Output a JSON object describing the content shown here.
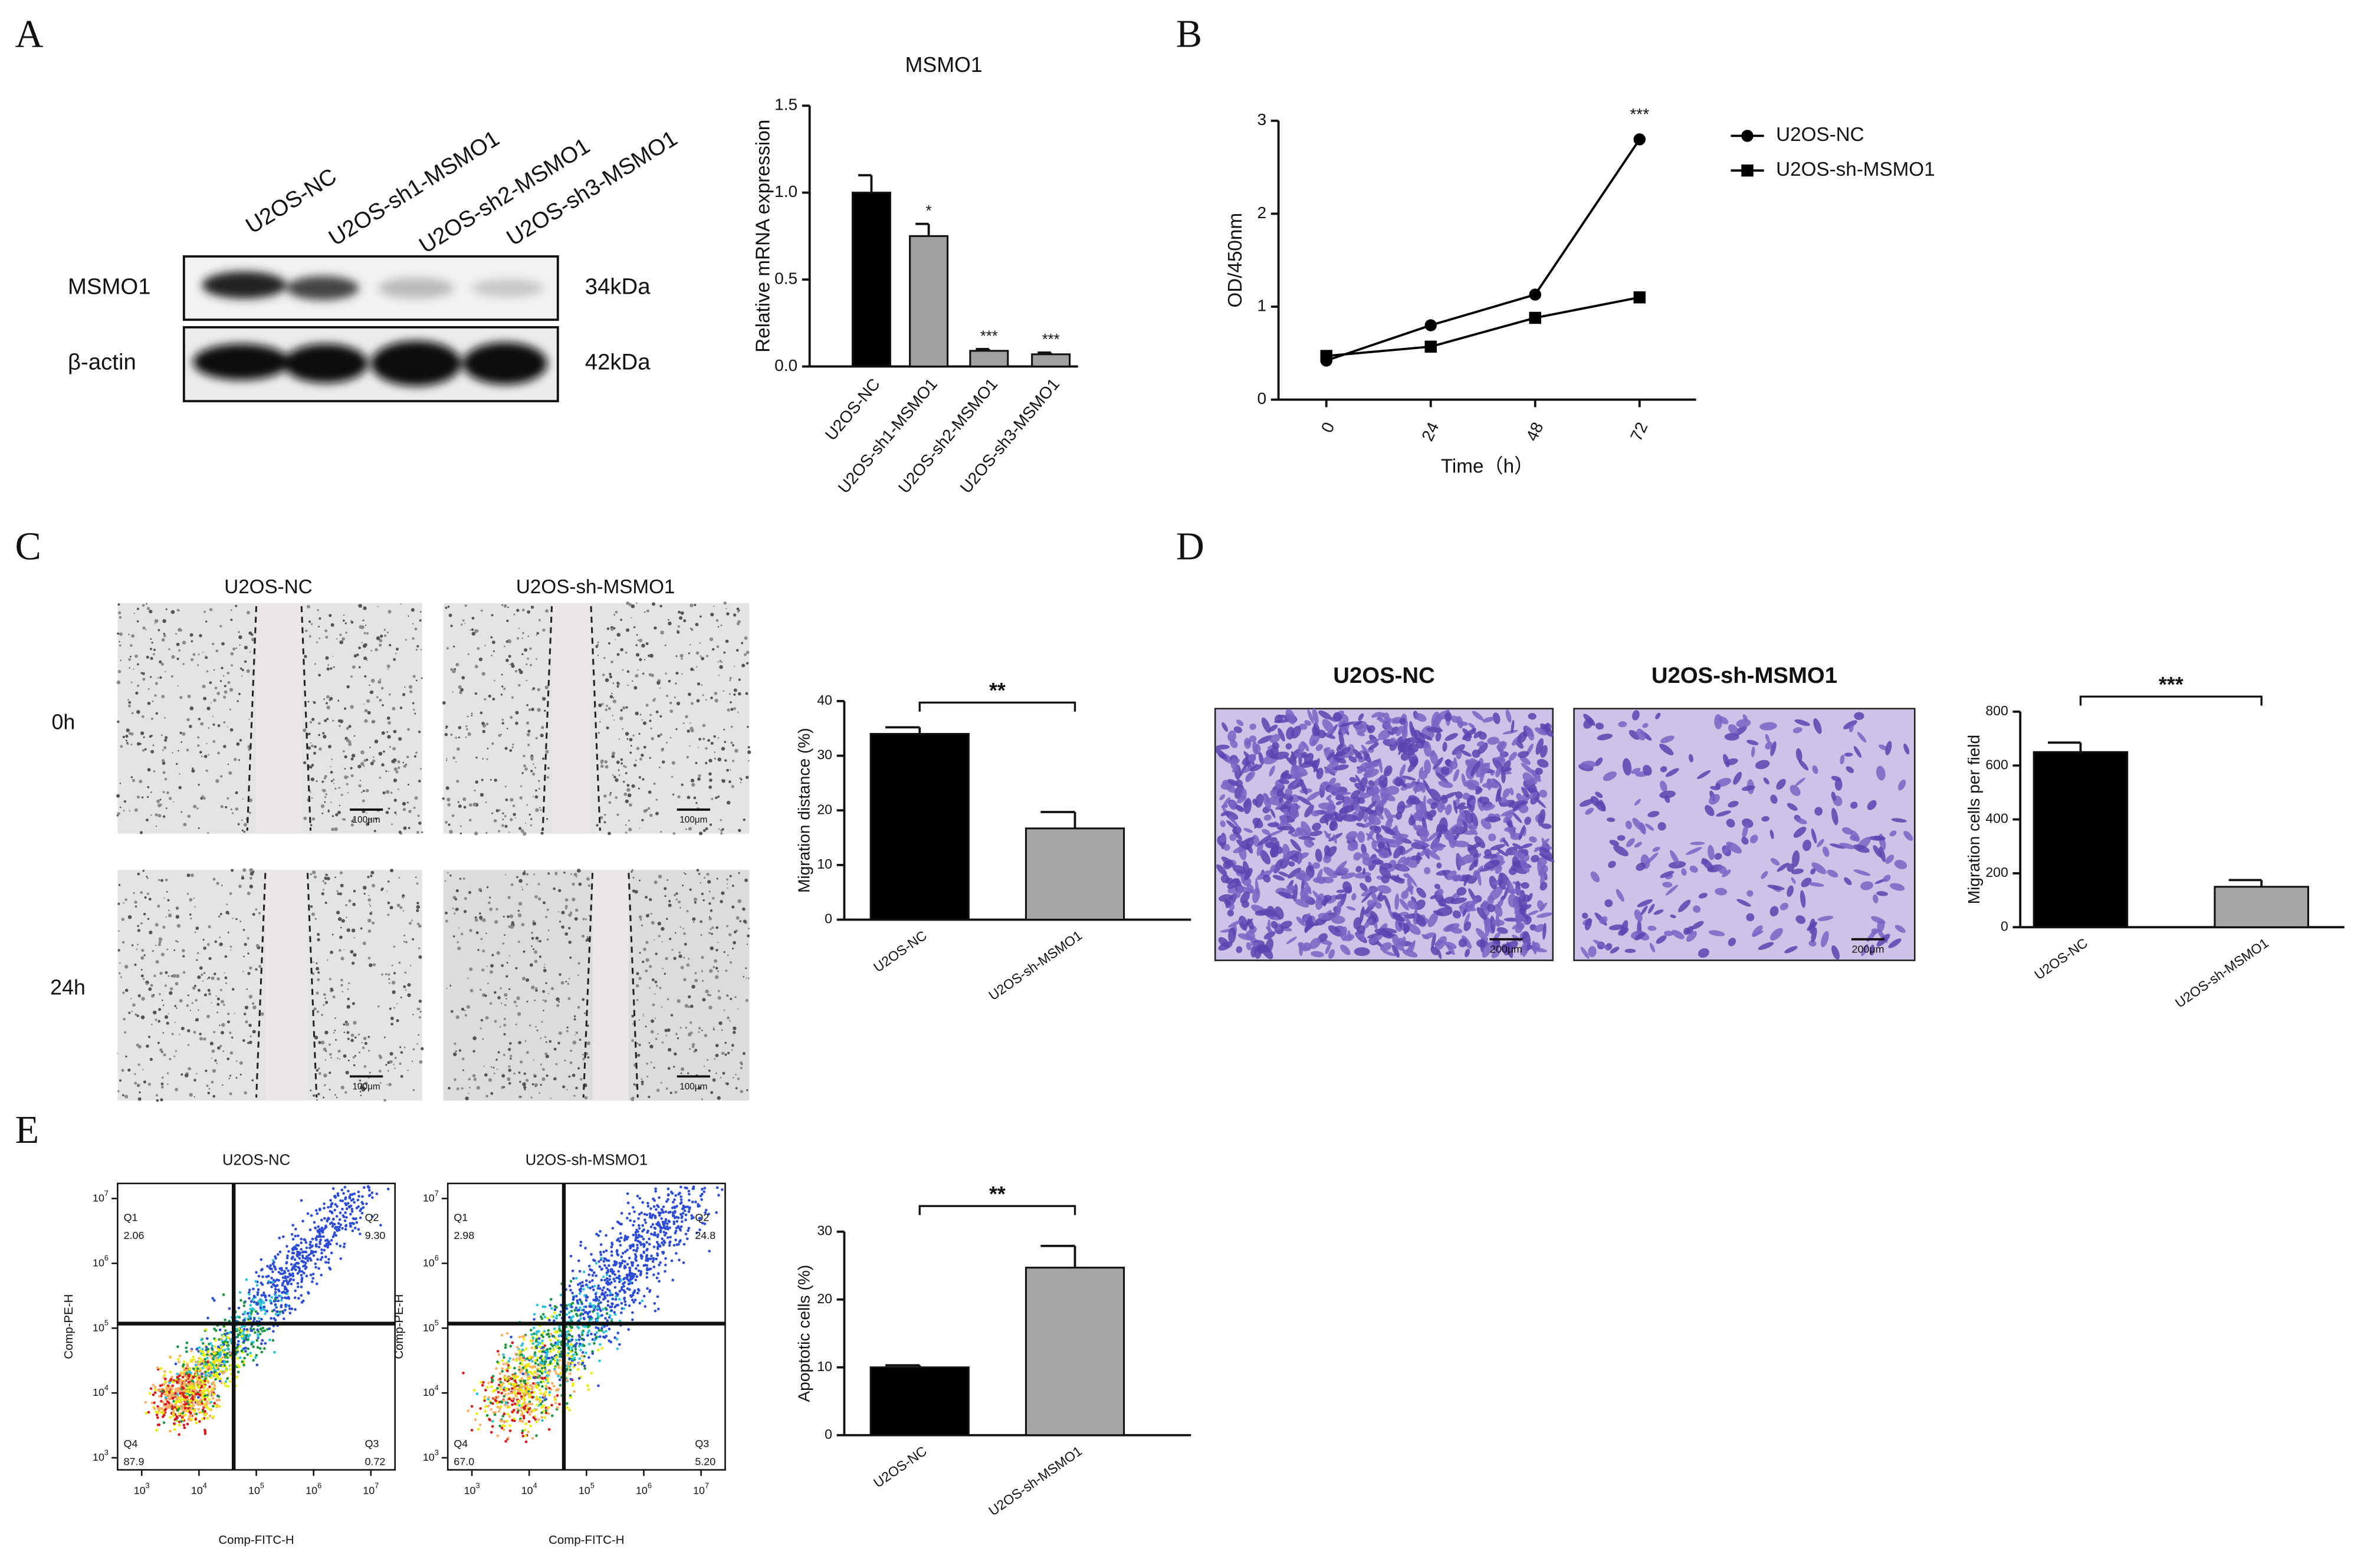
{
  "panel_labels": [
    "A",
    "B",
    "C",
    "D",
    "E"
  ],
  "western_blot": {
    "columns": [
      "U2OS-NC",
      "U2OS-sh1-MSMO1",
      "U2OS-sh2-MSMO1",
      "U2OS-sh3-MSMO1"
    ],
    "rows": [
      {
        "protein": "MSMO1",
        "size": "34kDa"
      },
      {
        "protein": "β-actin",
        "size": "42kDa"
      }
    ]
  },
  "wound_healing": {
    "columns": [
      "U2OS-NC",
      "U2OS-sh-MSMO1"
    ],
    "rows": [
      "0h",
      "24h"
    ],
    "scale_bar": "100μm"
  },
  "transwell": {
    "columns": [
      "U2OS-NC",
      "U2OS-sh-MSMO1"
    ],
    "scale_bar": "200μm"
  },
  "flow_cytometry": {
    "x_label": "Comp-FITC-H",
    "y_label": "Comp-PE-H",
    "tick_base": "10",
    "tick_exponents": [
      "3",
      "4",
      "5",
      "6",
      "7"
    ],
    "plots": [
      {
        "title": "U2OS-NC",
        "quadrants": [
          {
            "name": "Q1",
            "value": "2.06"
          },
          {
            "name": "Q2",
            "value": "9.30"
          },
          {
            "name": "Q3",
            "value": "0.72"
          },
          {
            "name": "Q4",
            "value": "87.9"
          }
        ]
      },
      {
        "title": "U2OS-sh-MSMO1",
        "quadrants": [
          {
            "name": "Q1",
            "value": "2.98"
          },
          {
            "name": "Q2",
            "value": "24.8"
          },
          {
            "name": "Q3",
            "value": "5.20"
          },
          {
            "name": "Q4",
            "value": "67.0"
          }
        ]
      }
    ]
  },
  "chart_data": [
    {
      "type": "bar",
      "title": "MSMO1",
      "y_label": "Relative mRNA expression",
      "categories": [
        "U2OS-NC",
        "U2OS-sh1-MSMO1",
        "U2OS-sh2-MSMO1",
        "U2OS-sh3-MSMO1"
      ],
      "values": [
        1.0,
        0.75,
        0.09,
        0.07
      ],
      "errors": [
        0.1,
        0.07,
        0.01,
        0.01
      ],
      "colors": [
        "#000000",
        "#a0a0a0",
        "#a0a0a0",
        "#a0a0a0"
      ],
      "annotations": [
        null,
        "*",
        "***",
        "***"
      ],
      "ylim": [
        0,
        1.5
      ],
      "yticks": [
        {
          "value": 0,
          "label": "0.0"
        },
        0.5,
        {
          "value": 1,
          "label": "1.0"
        },
        1.5
      ]
    },
    {
      "type": "line",
      "x_label": "Time（h）",
      "y_label": "OD/450nm",
      "x": [
        0,
        24,
        48,
        72
      ],
      "xlim": [
        -11,
        85
      ],
      "xticks": [
        0,
        24,
        48,
        72
      ],
      "ylim": [
        0,
        3
      ],
      "yticks": [
        0,
        1,
        2,
        3
      ],
      "annotations": [
        null,
        null,
        null,
        "***"
      ],
      "legend": "right",
      "series": [
        {
          "name": "U2OS-NC",
          "color": "#000000",
          "marker": "circle",
          "values": [
            0.42,
            0.8,
            1.13,
            2.8
          ]
        },
        {
          "name": "U2OS-sh-MSMO1",
          "color": "#000000",
          "marker": "square",
          "values": [
            0.47,
            0.57,
            0.88,
            1.1
          ]
        }
      ]
    },
    {
      "type": "bar",
      "y_label": "Migration distance (%)",
      "categories": [
        "U2OS-NC",
        "U2OS-sh-MSMO1"
      ],
      "values": [
        34,
        16.7
      ],
      "errors": [
        1.2,
        3
      ],
      "colors": [
        "#000000",
        "#a6a6a6"
      ],
      "significance": "**",
      "ylim": [
        0,
        40
      ],
      "yticks": [
        0,
        10,
        20,
        30,
        40
      ]
    },
    {
      "type": "bar",
      "y_label": "Migration cells per field",
      "categories": [
        "U2OS-NC",
        "U2OS-sh-MSMO1"
      ],
      "values": [
        650,
        150
      ],
      "errors": [
        35,
        25
      ],
      "colors": [
        "#000000",
        "#a6a6a6"
      ],
      "significance": "***",
      "ylim": [
        0,
        800
      ],
      "yticks": [
        0,
        200,
        400,
        600,
        800
      ]
    },
    {
      "type": "bar",
      "y_label": "Apoptotic cells (%)",
      "categories": [
        "U2OS-NC",
        "U2OS-sh-MSMO1"
      ],
      "values": [
        10,
        24.7
      ],
      "errors": [
        0.3,
        3.2
      ],
      "colors": [
        "#000000",
        "#a6a6a6"
      ],
      "significance": "**",
      "ylim": [
        0,
        30
      ],
      "yticks": [
        0,
        10,
        20,
        30
      ]
    }
  ]
}
